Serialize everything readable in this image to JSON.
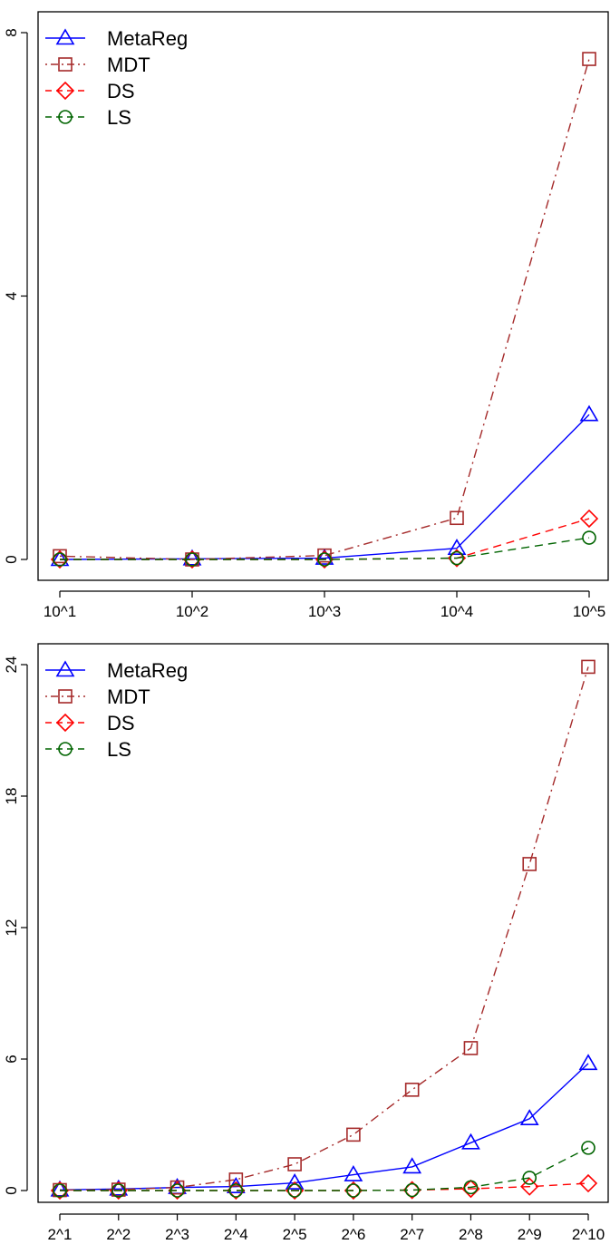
{
  "chart_data": [
    {
      "type": "line",
      "categories": [
        "10^1",
        "10^2",
        "10^3",
        "10^4",
        "10^5"
      ],
      "ylim": [
        0,
        8
      ],
      "yticks": [
        "0",
        "4",
        "8"
      ],
      "legend_position": "top-left",
      "series": [
        {
          "name": "MetaReg",
          "color": "#0000FF",
          "marker": "triangle",
          "linestyle": "solid",
          "values": [
            0.0,
            0.01,
            0.02,
            0.17,
            2.2
          ]
        },
        {
          "name": "MDT",
          "color": "#A52A2A",
          "marker": "square",
          "linestyle": "dotdash",
          "values": [
            0.05,
            0.0,
            0.06,
            0.63,
            7.6
          ]
        },
        {
          "name": "DS",
          "color": "#FF0000",
          "marker": "diamond",
          "linestyle": "dashed",
          "values": [
            0.0,
            0.0,
            0.0,
            0.02,
            0.62
          ]
        },
        {
          "name": "LS",
          "color": "#006400",
          "marker": "circle",
          "linestyle": "dashed",
          "values": [
            0.0,
            0.0,
            0.0,
            0.02,
            0.33
          ]
        }
      ]
    },
    {
      "type": "line",
      "categories": [
        "2^1",
        "2^2",
        "2^3",
        "2^4",
        "2^5",
        "2^6",
        "2^7",
        "2^8",
        "2^9",
        "2^10"
      ],
      "ylim": [
        0,
        24
      ],
      "yticks": [
        "0",
        "6",
        "12",
        "18",
        "24"
      ],
      "legend_position": "top-left",
      "series": [
        {
          "name": "MetaReg",
          "color": "#0000FF",
          "marker": "triangle",
          "linestyle": "solid",
          "values": [
            0.03,
            0.07,
            0.14,
            0.18,
            0.35,
            0.72,
            1.08,
            2.18,
            3.28,
            5.8
          ]
        },
        {
          "name": "MDT",
          "color": "#A52A2A",
          "marker": "square",
          "linestyle": "dotdash",
          "values": [
            0.02,
            0.04,
            0.14,
            0.5,
            1.2,
            2.55,
            4.6,
            6.5,
            14.9,
            23.9
          ]
        },
        {
          "name": "DS",
          "color": "#FF0000",
          "marker": "diamond",
          "linestyle": "dashed",
          "values": [
            0.0,
            0.0,
            0.0,
            0.0,
            0.0,
            0.0,
            0.02,
            0.08,
            0.18,
            0.33
          ]
        },
        {
          "name": "LS",
          "color": "#006400",
          "marker": "circle",
          "linestyle": "dashed",
          "values": [
            0.0,
            0.0,
            0.0,
            0.0,
            0.0,
            0.0,
            0.02,
            0.15,
            0.58,
            1.95
          ]
        }
      ]
    }
  ]
}
